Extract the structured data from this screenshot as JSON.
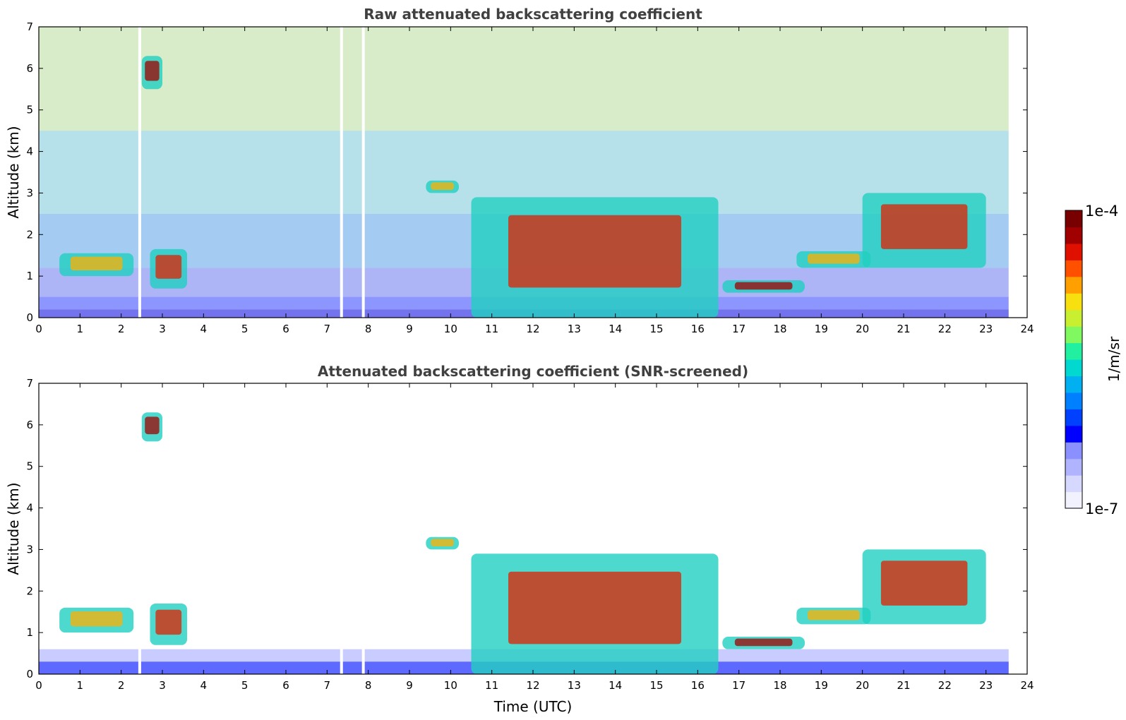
{
  "chart_data": [
    {
      "type": "heatmap",
      "title": "Raw attenuated backscattering coefficient",
      "xlabel": "",
      "ylabel": "Altitude (km)",
      "xlim": [
        0,
        24
      ],
      "ylim": [
        0,
        7
      ],
      "xticks": [
        "0",
        "1",
        "2",
        "3",
        "4",
        "5",
        "6",
        "7",
        "8",
        "9",
        "10",
        "11",
        "12",
        "13",
        "14",
        "15",
        "16",
        "17",
        "18",
        "19",
        "20",
        "21",
        "22",
        "23",
        "24"
      ],
      "yticks": [
        "0",
        "1",
        "2",
        "3",
        "4",
        "5",
        "6",
        "7"
      ],
      "data_end_hour": 23.55,
      "missing_data_hours": [
        2.45,
        7.35,
        7.88
      ],
      "features": [
        {
          "name": "boundary layer cloud",
          "x": [
            0.5,
            2.3
          ],
          "y": [
            1.0,
            1.55
          ]
        },
        {
          "name": "cloud patch",
          "x": [
            2.7,
            3.6
          ],
          "y": [
            0.7,
            1.65
          ]
        },
        {
          "name": "elevated aerosol layer",
          "x": [
            2.5,
            3.0
          ],
          "y": [
            5.5,
            6.3
          ]
        },
        {
          "name": "small cloud",
          "x": [
            9.4,
            10.2
          ],
          "y": [
            3.0,
            3.3
          ]
        },
        {
          "name": "convective clouds",
          "x": [
            10.5,
            16.5
          ],
          "y": [
            0.0,
            2.9
          ]
        },
        {
          "name": "cloud band",
          "x": [
            16.6,
            18.6
          ],
          "y": [
            0.6,
            0.9
          ]
        },
        {
          "name": "cloud band",
          "x": [
            18.4,
            20.2
          ],
          "y": [
            1.2,
            1.6
          ]
        },
        {
          "name": "scattered clouds",
          "x": [
            20.0,
            23.0
          ],
          "y": [
            1.2,
            3.0
          ]
        }
      ]
    },
    {
      "type": "heatmap",
      "title": "Attenuated backscattering coefficient (SNR-screened)",
      "xlabel": "Time (UTC)",
      "ylabel": "Altitude (km)",
      "xlim": [
        0,
        24
      ],
      "ylim": [
        0,
        7
      ],
      "xticks": [
        "0",
        "1",
        "2",
        "3",
        "4",
        "5",
        "6",
        "7",
        "8",
        "9",
        "10",
        "11",
        "12",
        "13",
        "14",
        "15",
        "16",
        "17",
        "18",
        "19",
        "20",
        "21",
        "22",
        "23",
        "24"
      ],
      "yticks": [
        "0",
        "1",
        "2",
        "3",
        "4",
        "5",
        "6",
        "7"
      ],
      "data_end_hour": 23.55,
      "missing_data_hours": [
        2.45,
        7.35,
        7.88
      ],
      "features": [
        {
          "name": "boundary layer cloud",
          "x": [
            0.5,
            2.3
          ],
          "y": [
            1.0,
            1.6
          ]
        },
        {
          "name": "cloud patch",
          "x": [
            2.7,
            3.6
          ],
          "y": [
            0.7,
            1.7
          ]
        },
        {
          "name": "elevated aerosol layer",
          "x": [
            2.5,
            3.0
          ],
          "y": [
            5.6,
            6.3
          ]
        },
        {
          "name": "small cloud",
          "x": [
            9.4,
            10.2
          ],
          "y": [
            3.0,
            3.3
          ]
        },
        {
          "name": "convective clouds",
          "x": [
            10.5,
            16.5
          ],
          "y": [
            0.0,
            2.9
          ]
        },
        {
          "name": "cloud band",
          "x": [
            16.6,
            18.6
          ],
          "y": [
            0.6,
            0.9
          ]
        },
        {
          "name": "cloud band",
          "x": [
            18.4,
            20.2
          ],
          "y": [
            1.2,
            1.6
          ]
        },
        {
          "name": "scattered clouds",
          "x": [
            20.0,
            23.0
          ],
          "y": [
            1.2,
            3.0
          ]
        }
      ]
    }
  ],
  "colorbar": {
    "label": "1/m/sr",
    "max_label": "1e-4",
    "min_label": "1e-7",
    "colors": [
      "#f2f2ff",
      "#d6d8ff",
      "#b0b4ff",
      "#8a90ff",
      "#0000ff",
      "#0040ff",
      "#0080ff",
      "#00b0f0",
      "#00d8d0",
      "#20f0a0",
      "#80f860",
      "#c8f030",
      "#f8e010",
      "#ffa000",
      "#ff5000",
      "#e01000",
      "#a00000",
      "#780000"
    ]
  }
}
